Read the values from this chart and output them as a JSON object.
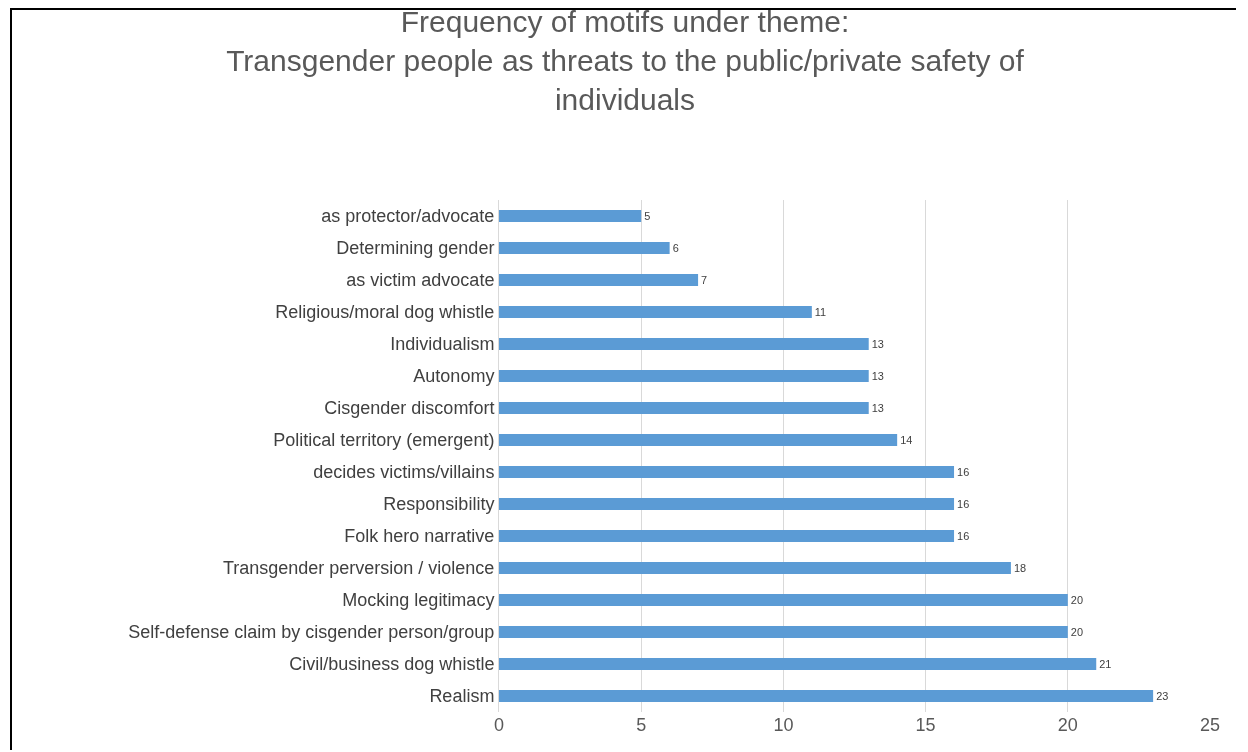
{
  "chart_data": {
    "type": "bar",
    "orientation": "horizontal",
    "title": "Frequency of motifs under theme:\nTransgender people as threats to the public/private safety of individuals",
    "categories": [
      "as protector/advocate",
      "Determining gender",
      "as victim advocate",
      "Religious/moral dog whistle",
      "Individualism",
      "Autonomy",
      "Cisgender discomfort",
      "Political territory (emergent)",
      "decides victims/villains",
      "Responsibility",
      "Folk hero narrative",
      "Transgender perversion / violence",
      "Mocking legitimacy",
      "Self-defense claim by cisgender person/group",
      "Civil/business dog whistle",
      "Realism"
    ],
    "values": [
      5,
      6,
      7,
      11,
      13,
      13,
      13,
      14,
      16,
      16,
      16,
      18,
      20,
      20,
      21,
      23
    ],
    "color": "#5b9bd5",
    "xlim": [
      0,
      25
    ],
    "xticks": [
      0,
      5,
      10,
      15,
      20,
      25
    ],
    "grid": "x",
    "data_labels": true,
    "legend": false
  }
}
